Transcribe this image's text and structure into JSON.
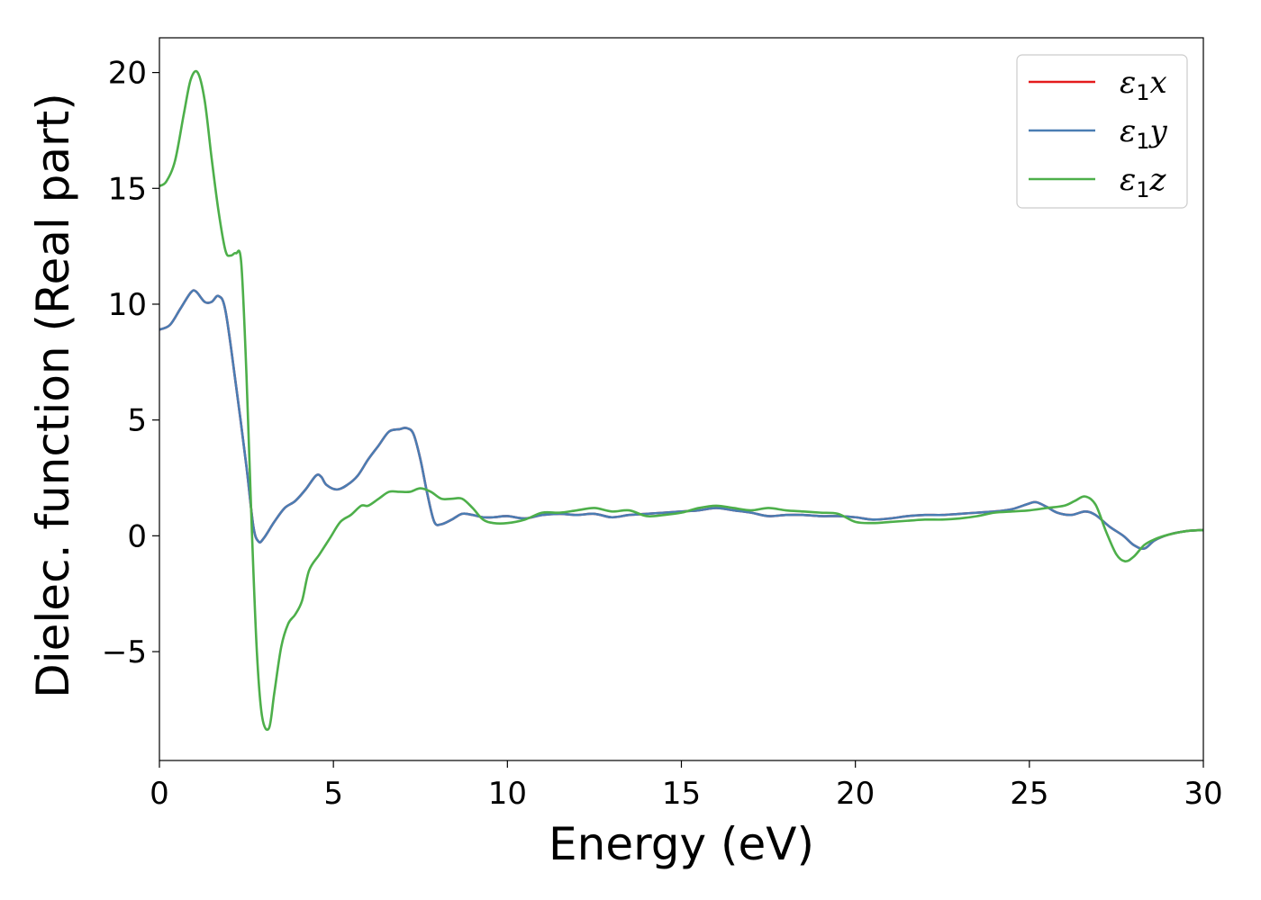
{
  "chart_data": {
    "type": "line",
    "title": "",
    "xlabel": "Energy (eV)",
    "ylabel": "Dielec. function (Real part)",
    "xlim": [
      0,
      30
    ],
    "ylim": [
      -9.7,
      21.5
    ],
    "xticks": [
      0,
      5,
      10,
      15,
      20,
      25,
      30
    ],
    "xtick_labels": [
      "0",
      "5",
      "10",
      "15",
      "20",
      "25",
      "30"
    ],
    "yticks": [
      -5,
      0,
      5,
      10,
      15,
      20
    ],
    "ytick_labels": [
      "−5",
      "0",
      "5",
      "10",
      "15",
      "20"
    ],
    "grid": false,
    "legend_position": "top-right",
    "series": [
      {
        "name": "ε1x",
        "legend_base": "ε",
        "legend_sub": "1",
        "legend_tail": "x",
        "color": "#e41a1c",
        "x": [
          0,
          0.3,
          0.6,
          0.9,
          1.05,
          1.3,
          1.5,
          1.7,
          1.9,
          2.2,
          2.5,
          2.7,
          2.85,
          3.0,
          3.3,
          3.6,
          3.9,
          4.2,
          4.5,
          4.65,
          4.8,
          5.1,
          5.4,
          5.7,
          6.0,
          6.3,
          6.6,
          6.9,
          7.1,
          7.3,
          7.5,
          7.7,
          7.9,
          8.1,
          8.4,
          8.7,
          9.0,
          9.3,
          9.6,
          10.0,
          10.5,
          11.0,
          11.5,
          12.0,
          12.5,
          13.0,
          13.5,
          14.0,
          14.5,
          15.0,
          15.5,
          16.0,
          16.5,
          17.0,
          17.5,
          18.0,
          18.5,
          19.0,
          19.5,
          20.0,
          20.5,
          21.0,
          21.5,
          22.0,
          22.5,
          23.0,
          23.5,
          24.0,
          24.5,
          25.0,
          25.2,
          25.5,
          25.8,
          26.2,
          26.6,
          26.9,
          27.3,
          27.7,
          28.0,
          28.3,
          28.6,
          29.0,
          29.5,
          30.0
        ],
        "values": [
          8.9,
          9.1,
          9.8,
          10.5,
          10.55,
          10.1,
          10.1,
          10.35,
          9.7,
          6.5,
          3.0,
          0.4,
          -0.25,
          -0.1,
          0.6,
          1.2,
          1.5,
          2.0,
          2.6,
          2.55,
          2.2,
          2.0,
          2.2,
          2.6,
          3.3,
          3.9,
          4.5,
          4.6,
          4.65,
          4.4,
          3.3,
          1.8,
          0.6,
          0.5,
          0.7,
          0.95,
          0.9,
          0.8,
          0.8,
          0.85,
          0.75,
          0.9,
          0.95,
          0.9,
          0.95,
          0.8,
          0.9,
          0.95,
          1.0,
          1.05,
          1.1,
          1.2,
          1.1,
          1.0,
          0.85,
          0.9,
          0.9,
          0.85,
          0.85,
          0.8,
          0.7,
          0.75,
          0.85,
          0.9,
          0.9,
          0.95,
          1.0,
          1.05,
          1.15,
          1.4,
          1.45,
          1.25,
          1.0,
          0.9,
          1.05,
          0.9,
          0.4,
          0.0,
          -0.4,
          -0.55,
          -0.2,
          0.05,
          0.2,
          0.25
        ]
      },
      {
        "name": "ε1y",
        "legend_base": "ε",
        "legend_sub": "1",
        "legend_tail": "y",
        "color": "#4a7db3",
        "x": [
          0,
          0.3,
          0.6,
          0.9,
          1.05,
          1.3,
          1.5,
          1.7,
          1.9,
          2.2,
          2.5,
          2.7,
          2.85,
          3.0,
          3.3,
          3.6,
          3.9,
          4.2,
          4.5,
          4.65,
          4.8,
          5.1,
          5.4,
          5.7,
          6.0,
          6.3,
          6.6,
          6.9,
          7.1,
          7.3,
          7.5,
          7.7,
          7.9,
          8.1,
          8.4,
          8.7,
          9.0,
          9.3,
          9.6,
          10.0,
          10.5,
          11.0,
          11.5,
          12.0,
          12.5,
          13.0,
          13.5,
          14.0,
          14.5,
          15.0,
          15.5,
          16.0,
          16.5,
          17.0,
          17.5,
          18.0,
          18.5,
          19.0,
          19.5,
          20.0,
          20.5,
          21.0,
          21.5,
          22.0,
          22.5,
          23.0,
          23.5,
          24.0,
          24.5,
          25.0,
          25.2,
          25.5,
          25.8,
          26.2,
          26.6,
          26.9,
          27.3,
          27.7,
          28.0,
          28.3,
          28.6,
          29.0,
          29.5,
          30.0
        ],
        "values": [
          8.9,
          9.1,
          9.8,
          10.5,
          10.55,
          10.1,
          10.1,
          10.35,
          9.7,
          6.5,
          3.0,
          0.4,
          -0.25,
          -0.1,
          0.6,
          1.2,
          1.5,
          2.0,
          2.6,
          2.55,
          2.2,
          2.0,
          2.2,
          2.6,
          3.3,
          3.9,
          4.5,
          4.6,
          4.65,
          4.4,
          3.3,
          1.8,
          0.6,
          0.5,
          0.7,
          0.95,
          0.9,
          0.8,
          0.8,
          0.85,
          0.75,
          0.9,
          0.95,
          0.9,
          0.95,
          0.8,
          0.9,
          0.95,
          1.0,
          1.05,
          1.1,
          1.2,
          1.1,
          1.0,
          0.85,
          0.9,
          0.9,
          0.85,
          0.85,
          0.8,
          0.7,
          0.75,
          0.85,
          0.9,
          0.9,
          0.95,
          1.0,
          1.05,
          1.15,
          1.4,
          1.45,
          1.25,
          1.0,
          0.9,
          1.05,
          0.9,
          0.4,
          0.0,
          -0.4,
          -0.55,
          -0.2,
          0.05,
          0.2,
          0.25
        ]
      },
      {
        "name": "ε1z",
        "legend_base": "ε",
        "legend_sub": "1",
        "legend_tail": "z",
        "color": "#4daf4a",
        "x": [
          0,
          0.2,
          0.45,
          0.7,
          0.9,
          1.1,
          1.3,
          1.5,
          1.7,
          1.9,
          2.05,
          2.2,
          2.35,
          2.5,
          2.65,
          2.8,
          2.95,
          3.15,
          3.3,
          3.5,
          3.7,
          3.9,
          4.1,
          4.3,
          4.6,
          4.9,
          5.2,
          5.5,
          5.8,
          6.0,
          6.3,
          6.6,
          6.9,
          7.2,
          7.5,
          7.8,
          8.1,
          8.4,
          8.7,
          9.0,
          9.3,
          9.6,
          10.0,
          10.5,
          11.0,
          11.5,
          12.0,
          12.5,
          13.0,
          13.5,
          14.0,
          14.5,
          15.0,
          15.5,
          16.0,
          16.5,
          17.0,
          17.5,
          18.0,
          18.5,
          19.0,
          19.5,
          20.0,
          20.5,
          21.0,
          21.5,
          22.0,
          22.5,
          23.0,
          23.5,
          24.0,
          24.5,
          25.0,
          25.5,
          26.0,
          26.3,
          26.6,
          26.9,
          27.2,
          27.5,
          27.75,
          28.0,
          28.3,
          28.6,
          29.0,
          29.5,
          30.0
        ],
        "values": [
          15.1,
          15.3,
          16.2,
          18.2,
          19.7,
          20.0,
          18.8,
          16.3,
          14.0,
          12.3,
          12.1,
          12.2,
          11.8,
          7.0,
          0.5,
          -5.0,
          -7.8,
          -8.3,
          -6.8,
          -4.8,
          -3.8,
          -3.4,
          -2.8,
          -1.5,
          -0.8,
          -0.1,
          0.6,
          0.9,
          1.3,
          1.3,
          1.6,
          1.9,
          1.9,
          1.9,
          2.05,
          1.9,
          1.6,
          1.6,
          1.6,
          1.2,
          0.7,
          0.55,
          0.55,
          0.7,
          1.0,
          1.0,
          1.1,
          1.2,
          1.05,
          1.1,
          0.85,
          0.9,
          1.0,
          1.2,
          1.3,
          1.2,
          1.1,
          1.2,
          1.1,
          1.05,
          1.0,
          0.95,
          0.6,
          0.55,
          0.6,
          0.65,
          0.7,
          0.7,
          0.75,
          0.85,
          1.0,
          1.05,
          1.1,
          1.2,
          1.3,
          1.5,
          1.7,
          1.35,
          0.2,
          -0.8,
          -1.1,
          -0.9,
          -0.4,
          -0.15,
          0.05,
          0.2,
          0.25
        ]
      }
    ]
  }
}
